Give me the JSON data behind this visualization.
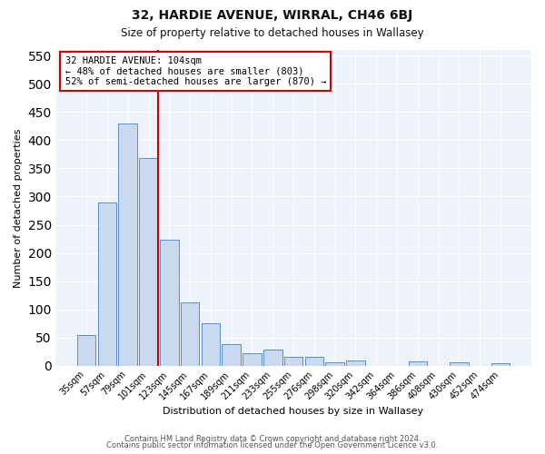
{
  "title": "32, HARDIE AVENUE, WIRRAL, CH46 6BJ",
  "subtitle": "Size of property relative to detached houses in Wallasey",
  "xlabel": "Distribution of detached houses by size in Wallasey",
  "ylabel": "Number of detached properties",
  "bar_labels": [
    "35sqm",
    "57sqm",
    "79sqm",
    "101sqm",
    "123sqm",
    "145sqm",
    "167sqm",
    "189sqm",
    "211sqm",
    "233sqm",
    "255sqm",
    "276sqm",
    "298sqm",
    "320sqm",
    "342sqm",
    "364sqm",
    "386sqm",
    "408sqm",
    "430sqm",
    "452sqm",
    "474sqm"
  ],
  "bar_values": [
    55,
    290,
    430,
    368,
    224,
    113,
    76,
    38,
    22,
    29,
    16,
    15,
    6,
    10,
    0,
    0,
    8,
    0,
    6,
    0,
    5
  ],
  "bar_color": "#c9d9f0",
  "bar_edge_color": "#5b8fc9",
  "vline_color": "#cc0000",
  "vline_bar_index": 3,
  "annotation_title": "32 HARDIE AVENUE: 104sqm",
  "annotation_line1": "← 48% of detached houses are smaller (803)",
  "annotation_line2": "52% of semi-detached houses are larger (870) →",
  "annotation_box_edgecolor": "#cc0000",
  "ylim": [
    0,
    560
  ],
  "yticks": [
    0,
    50,
    100,
    150,
    200,
    250,
    300,
    350,
    400,
    450,
    500,
    550
  ],
  "fig_background_color": "#ffffff",
  "plot_background_color": "#eef2fa",
  "grid_color": "#ffffff",
  "footer_line1": "Contains HM Land Registry data © Crown copyright and database right 2024.",
  "footer_line2": "Contains public sector information licensed under the Open Government Licence v3.0."
}
